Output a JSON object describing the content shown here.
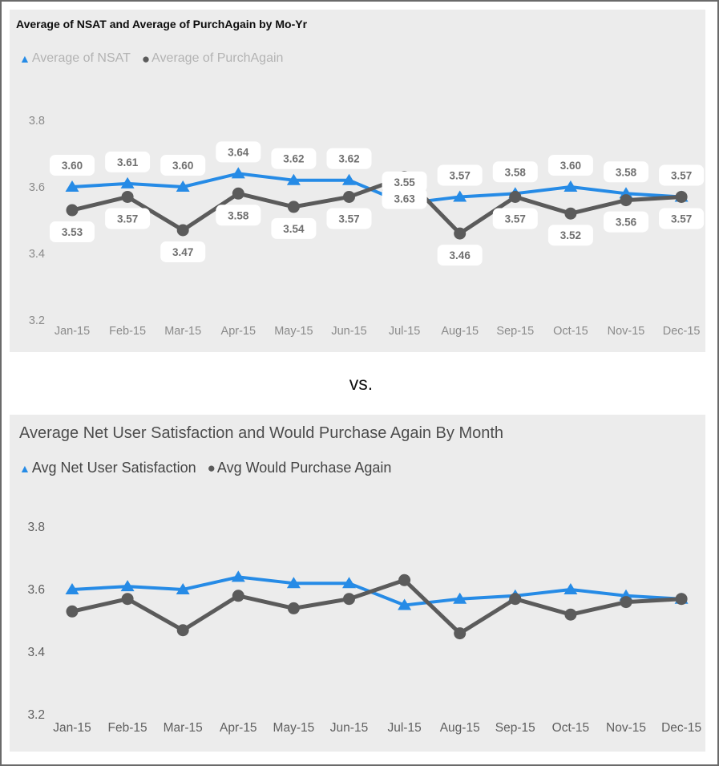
{
  "divider": {
    "label": "vs."
  },
  "colors": {
    "nsat_blue": "#268BE6",
    "purchagain_gray": "#5B5B5B",
    "panel_background": "#ECECEC",
    "callout_background": "#FFFFFF",
    "callout_text": "#6F6F6F",
    "frame_border": "#6A6A6A"
  },
  "chart_data": [
    {
      "type": "line",
      "title": "Average of NSAT and Average of PurchAgain by Mo-Yr",
      "categories": [
        "Jan-15",
        "Feb-15",
        "Mar-15",
        "Apr-15",
        "May-15",
        "Jun-15",
        "Jul-15",
        "Aug-15",
        "Sep-15",
        "Oct-15",
        "Nov-15",
        "Dec-15"
      ],
      "series": [
        {
          "name": "Average of NSAT",
          "marker": "triangle",
          "color": "#268BE6",
          "values": [
            3.6,
            3.61,
            3.6,
            3.64,
            3.62,
            3.62,
            3.55,
            3.57,
            3.58,
            3.6,
            3.58,
            3.57
          ]
        },
        {
          "name": "Average of PurchAgain",
          "marker": "circle",
          "color": "#5B5B5B",
          "values": [
            3.53,
            3.57,
            3.47,
            3.58,
            3.54,
            3.57,
            3.63,
            3.46,
            3.57,
            3.52,
            3.56,
            3.57
          ]
        }
      ],
      "xlabel": "",
      "ylabel": "",
      "ylim": [
        3.2,
        3.9
      ],
      "yticks": [
        3.8,
        3.6,
        3.4,
        3.2
      ],
      "grid": false,
      "data_labels": true,
      "legend_position": "top-left"
    },
    {
      "type": "line",
      "title": "Average Net User Satisfaction and Would Purchase Again By Month",
      "categories": [
        "Jan-15",
        "Feb-15",
        "Mar-15",
        "Apr-15",
        "May-15",
        "Jun-15",
        "Jul-15",
        "Aug-15",
        "Sep-15",
        "Oct-15",
        "Nov-15",
        "Dec-15"
      ],
      "series": [
        {
          "name": "Avg Net User Satisfaction",
          "marker": "triangle",
          "color": "#268BE6",
          "values": [
            3.6,
            3.61,
            3.6,
            3.64,
            3.62,
            3.62,
            3.55,
            3.57,
            3.58,
            3.6,
            3.58,
            3.57
          ]
        },
        {
          "name": "Avg Would Purchase Again",
          "marker": "circle",
          "color": "#5B5B5B",
          "values": [
            3.53,
            3.57,
            3.47,
            3.58,
            3.54,
            3.57,
            3.63,
            3.46,
            3.57,
            3.52,
            3.56,
            3.57
          ]
        }
      ],
      "xlabel": "",
      "ylabel": "",
      "ylim": [
        3.2,
        3.9
      ],
      "yticks": [
        3.8,
        3.6,
        3.4,
        3.2
      ],
      "grid": false,
      "data_labels": false,
      "legend_position": "top-left"
    }
  ]
}
